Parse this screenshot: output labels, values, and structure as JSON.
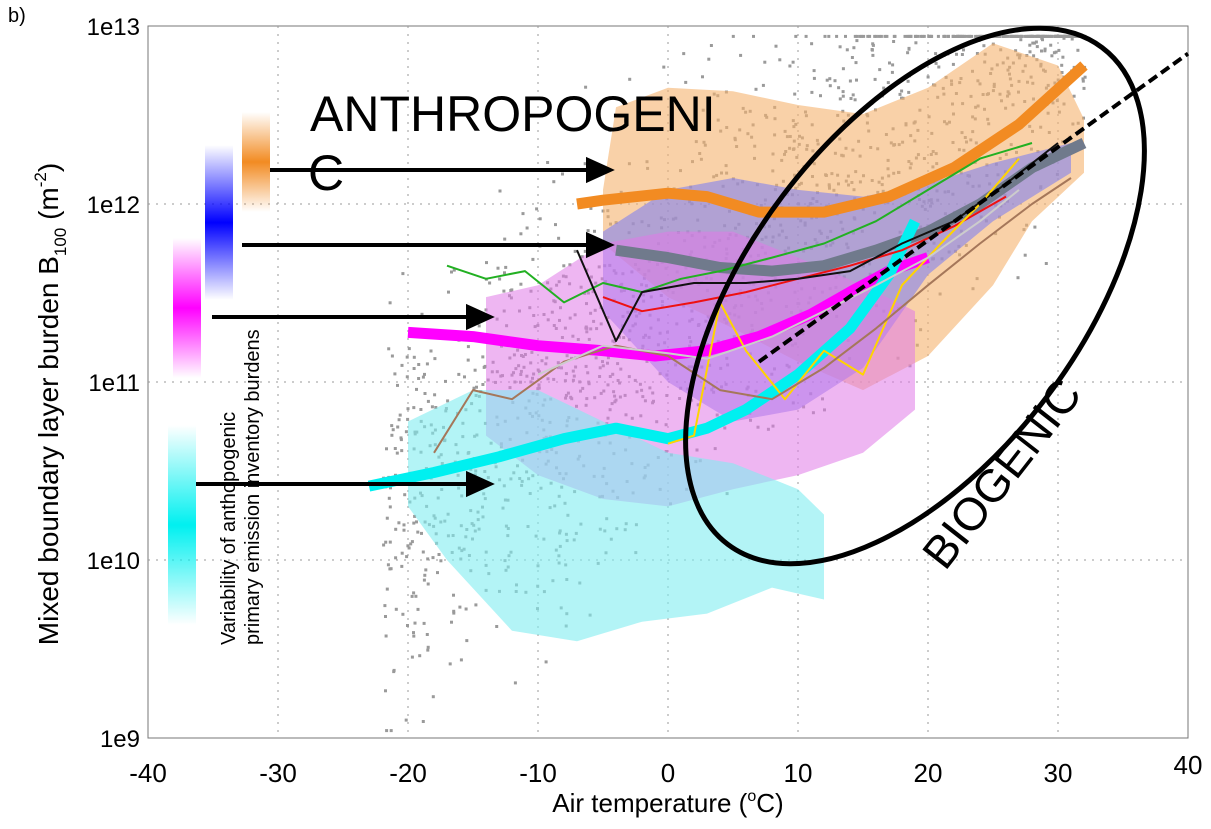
{
  "panel_label": "b)",
  "chart_data": {
    "type": "scatter",
    "xlabel_pre": "Air temperature (",
    "xlabel_sup": "o",
    "xlabel_post": "C)",
    "ylabel_pre": "Mixed boundary layer  burden B",
    "ylabel_sub": "100",
    "ylabel_mid": " (m",
    "ylabel_sup": "-2",
    "ylabel_post": ")",
    "xlim": [
      -40,
      40
    ],
    "ylim": [
      1000000000.0,
      10000000000000.0
    ],
    "yscale": "log",
    "grid": true,
    "x_ticks": [
      "-40",
      "-30",
      "-20",
      "-10",
      "0",
      "10",
      "20",
      "30",
      "40"
    ],
    "x_tick_values": [
      -40,
      -30,
      -20,
      -10,
      0,
      10,
      20,
      30,
      40
    ],
    "y_ticks": [
      "1e9",
      "1e10",
      "1e11",
      "1e12",
      "1e13"
    ],
    "y_tick_values": [
      1000000000.0,
      10000000000.0,
      100000000000.0,
      1000000000000.0,
      10000000000000.0
    ],
    "annotations": {
      "anthro_line1": "ANTHROPOGENI",
      "anthro_line2": "C",
      "biogenic": "BIOGENIC",
      "variability_line1": "Variability of anthopogenic",
      "variability_line2": "primary emission inventory burdens"
    },
    "bands": [
      {
        "color": "#f5b36e",
        "opacity": 0.6,
        "upper": [
          [
            -5,
            1200000000000.0
          ],
          [
            -4,
            3500000000000.0
          ],
          [
            0,
            4500000000000.0
          ],
          [
            5,
            4300000000000.0
          ],
          [
            10,
            3600000000000.0
          ],
          [
            15,
            3200000000000.0
          ],
          [
            20,
            4500000000000.0
          ],
          [
            25,
            8000000000000.0
          ],
          [
            30,
            6000000000000.0
          ],
          [
            32,
            3000000000000.0
          ]
        ],
        "lower": [
          [
            32,
            1500000000000.0
          ],
          [
            28,
            800000000000.0
          ],
          [
            25,
            350000000000.0
          ],
          [
            20,
            140000000000.0
          ],
          [
            15,
            90000000000.0
          ],
          [
            10,
            130000000000.0
          ],
          [
            5,
            200000000000.0
          ],
          [
            0,
            300000000000.0
          ],
          [
            -5,
            600000000000.0
          ]
        ]
      },
      {
        "color": "#8080f0",
        "opacity": 0.6,
        "upper": [
          [
            -5,
            700000000000.0
          ],
          [
            0,
            1200000000000.0
          ],
          [
            5,
            1400000000000.0
          ],
          [
            10,
            1200000000000.0
          ],
          [
            15,
            1100000000000.0
          ],
          [
            20,
            1300000000000.0
          ],
          [
            25,
            1700000000000.0
          ],
          [
            31,
            2200000000000.0
          ]
        ],
        "lower": [
          [
            31,
            1500000000000.0
          ],
          [
            25,
            800000000000.0
          ],
          [
            20,
            400000000000.0
          ],
          [
            15,
            120000000000.0
          ],
          [
            10,
            70000000000.0
          ],
          [
            5,
            60000000000.0
          ],
          [
            0,
            100000000000.0
          ],
          [
            -5,
            250000000000.0
          ]
        ]
      },
      {
        "color": "#e07ae8",
        "opacity": 0.55,
        "upper": [
          [
            -14,
            300000000000.0
          ],
          [
            -10,
            350000000000.0
          ],
          [
            -5,
            600000000000.0
          ],
          [
            0,
            700000000000.0
          ],
          [
            5,
            700000000000.0
          ],
          [
            10,
            500000000000.0
          ],
          [
            15,
            350000000000.0
          ],
          [
            19,
            250000000000.0
          ]
        ],
        "lower": [
          [
            19,
            70000000000.0
          ],
          [
            15,
            40000000000.0
          ],
          [
            10,
            30000000000.0
          ],
          [
            5,
            25000000000.0
          ],
          [
            0,
            20000000000.0
          ],
          [
            -5,
            22000000000.0
          ],
          [
            -10,
            30000000000.0
          ],
          [
            -14,
            50000000000.0
          ]
        ]
      },
      {
        "color": "#80ecf0",
        "opacity": 0.6,
        "upper": [
          [
            -20,
            60000000000.0
          ],
          [
            -15,
            90000000000.0
          ],
          [
            -10,
            90000000000.0
          ],
          [
            -5,
            60000000000.0
          ],
          [
            0,
            40000000000.0
          ],
          [
            5,
            35000000000.0
          ],
          [
            10,
            25000000000.0
          ],
          [
            12,
            18000000000.0
          ]
        ],
        "lower": [
          [
            12,
            6000000000.0
          ],
          [
            8,
            7000000000.0
          ],
          [
            3,
            5000000000.0
          ],
          [
            -2,
            4500000000.0
          ],
          [
            -7,
            3500000000.0
          ],
          [
            -12,
            4000000000.0
          ],
          [
            -17,
            10000000000.0
          ],
          [
            -20,
            20000000000.0
          ]
        ]
      }
    ],
    "series": [
      {
        "color": "#f28b22",
        "width": 11,
        "points": [
          [
            -7,
            1000000000000.0
          ],
          [
            -5,
            1050000000000.0
          ],
          [
            0,
            1150000000000.0
          ],
          [
            3,
            1100000000000.0
          ],
          [
            7,
            900000000000.0
          ],
          [
            12,
            900000000000.0
          ],
          [
            17,
            1100000000000.0
          ],
          [
            22,
            1600000000000.0
          ],
          [
            27,
            2800000000000.0
          ],
          [
            32,
            6000000000000.0
          ]
        ]
      },
      {
        "color": "#707a8c",
        "width": 11,
        "points": [
          [
            -4,
            550000000000.0
          ],
          [
            0,
            500000000000.0
          ],
          [
            4,
            440000000000.0
          ],
          [
            8,
            420000000000.0
          ],
          [
            12,
            450000000000.0
          ],
          [
            16,
            550000000000.0
          ],
          [
            20,
            700000000000.0
          ],
          [
            24,
            1000000000000.0
          ],
          [
            28,
            1600000000000.0
          ],
          [
            32,
            2200000000000.0
          ]
        ]
      },
      {
        "color": "#ff00ff",
        "width": 11,
        "points": [
          [
            -20,
            190000000000.0
          ],
          [
            -15,
            180000000000.0
          ],
          [
            -10,
            160000000000.0
          ],
          [
            -5,
            150000000000.0
          ],
          [
            -1,
            140000000000.0
          ],
          [
            3,
            150000000000.0
          ],
          [
            7,
            180000000000.0
          ],
          [
            11,
            240000000000.0
          ],
          [
            14,
            320000000000.0
          ],
          [
            17,
            420000000000.0
          ],
          [
            20,
            500000000000.0
          ]
        ]
      },
      {
        "color": "#00f0f0",
        "width": 11,
        "points": [
          [
            -23,
            26000000000.0
          ],
          [
            -18,
            31000000000.0
          ],
          [
            -13,
            38000000000.0
          ],
          [
            -8,
            48000000000.0
          ],
          [
            -4,
            55000000000.0
          ],
          [
            0,
            48000000000.0
          ],
          [
            3,
            55000000000.0
          ],
          [
            6,
            70000000000.0
          ],
          [
            10,
            110000000000.0
          ],
          [
            14,
            200000000000.0
          ],
          [
            17,
            400000000000.0
          ],
          [
            19,
            800000000000.0
          ]
        ]
      },
      {
        "color": "#22b022",
        "width": 2,
        "points": [
          [
            -17,
            450000000000.0
          ],
          [
            -14,
            380000000000.0
          ],
          [
            -11,
            420000000000.0
          ],
          [
            -8,
            280000000000.0
          ],
          [
            -5,
            360000000000.0
          ],
          [
            -2,
            320000000000.0
          ],
          [
            1,
            380000000000.0
          ],
          [
            4,
            420000000000.0
          ],
          [
            8,
            500000000000.0
          ],
          [
            12,
            600000000000.0
          ],
          [
            16,
            800000000000.0
          ],
          [
            20,
            1200000000000.0
          ],
          [
            24,
            1800000000000.0
          ],
          [
            28,
            2200000000000.0
          ]
        ]
      },
      {
        "color": "#ee1111",
        "width": 2,
        "points": [
          [
            -5,
            300000000000.0
          ],
          [
            -2,
            250000000000.0
          ],
          [
            2,
            280000000000.0
          ],
          [
            6,
            320000000000.0
          ],
          [
            10,
            380000000000.0
          ],
          [
            14,
            450000000000.0
          ],
          [
            18,
            550000000000.0
          ],
          [
            22,
            750000000000.0
          ],
          [
            26,
            1100000000000.0
          ]
        ]
      },
      {
        "color": "#111111",
        "width": 2,
        "points": [
          [
            -7,
            550000000000.0
          ],
          [
            -4,
            170000000000.0
          ],
          [
            -2,
            320000000000.0
          ],
          [
            2,
            360000000000.0
          ],
          [
            6,
            360000000000.0
          ],
          [
            10,
            380000000000.0
          ],
          [
            14,
            420000000000.0
          ],
          [
            18,
            600000000000.0
          ],
          [
            22,
            800000000000.0
          ],
          [
            26,
            1300000000000.0
          ],
          [
            30,
            2200000000000.0
          ]
        ]
      },
      {
        "color": "#ffd400",
        "width": 2,
        "points": [
          [
            0,
            45000000000.0
          ],
          [
            2,
            50000000000.0
          ],
          [
            4,
            280000000000.0
          ],
          [
            6,
            150000000000.0
          ],
          [
            9,
            80000000000.0
          ],
          [
            12,
            150000000000.0
          ],
          [
            15,
            110000000000.0
          ],
          [
            18,
            350000000000.0
          ],
          [
            21,
            600000000000.0
          ],
          [
            24,
            1000000000000.0
          ],
          [
            27,
            1800000000000.0
          ]
        ]
      },
      {
        "color": "#a5775a",
        "width": 2,
        "points": [
          [
            -18,
            40000000000.0
          ],
          [
            -15,
            90000000000.0
          ],
          [
            -12,
            80000000000.0
          ],
          [
            -8,
            130000000000.0
          ],
          [
            -4,
            160000000000.0
          ],
          [
            0,
            140000000000.0
          ],
          [
            4,
            90000000000.0
          ],
          [
            8,
            80000000000.0
          ],
          [
            12,
            120000000000.0
          ],
          [
            16,
            200000000000.0
          ],
          [
            20,
            350000000000.0
          ],
          [
            24,
            600000000000.0
          ],
          [
            28,
            1000000000000.0
          ],
          [
            31,
            1400000000000.0
          ]
        ]
      },
      {
        "color": "#cccccc",
        "width": 2,
        "points": [
          [
            -10,
            110000000000.0
          ],
          [
            -5,
            160000000000.0
          ],
          [
            0,
            145000000000.0
          ],
          [
            3,
            135000000000.0
          ],
          [
            8,
            180000000000.0
          ],
          [
            12,
            250000000000.0
          ],
          [
            16,
            350000000000.0
          ],
          [
            20,
            500000000000.0
          ],
          [
            24,
            800000000000.0
          ],
          [
            27,
            1200000000000.0
          ]
        ]
      }
    ],
    "fit_line": {
      "color": "#000000",
      "points": [
        [
          7,
          130000000000.0
        ],
        [
          40,
          7000000000000.0
        ]
      ]
    }
  }
}
